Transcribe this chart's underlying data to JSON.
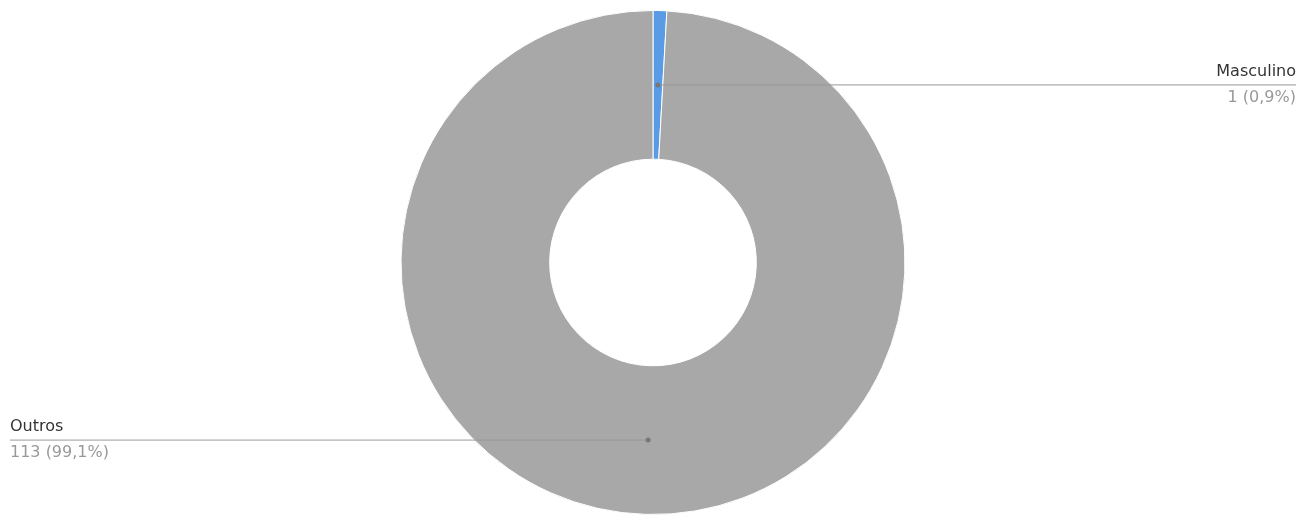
{
  "chart_data": {
    "type": "donut",
    "categories": [
      "Masculino",
      "Outros"
    ],
    "values": [
      1,
      113
    ],
    "colors": [
      "#5a9be6",
      "#a8a8a8"
    ],
    "value_labels": [
      "1 (0,9%)",
      "113 (99,1%)"
    ],
    "legend": false
  }
}
